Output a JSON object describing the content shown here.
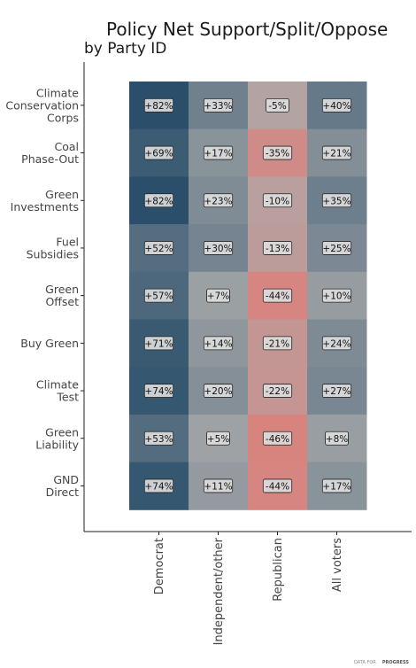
{
  "chart_data": {
    "type": "heatmap",
    "title": "Policy Net Support/Split/Oppose",
    "subtitle": "by Party ID",
    "rows": [
      [
        "Climate",
        "Conservation",
        "Corps"
      ],
      [
        "Coal",
        "Phase-Out"
      ],
      [
        "Green",
        "Investments"
      ],
      [
        "Fuel",
        "Subsidies"
      ],
      [
        "Green",
        "Offset"
      ],
      [
        "Buy Green"
      ],
      [
        "Climate",
        "Test"
      ],
      [
        "Green",
        "Liability"
      ],
      [
        "GND",
        "Direct"
      ]
    ],
    "columns": [
      "Democrat",
      "Independent/other",
      "Republican",
      "All voters"
    ],
    "values": [
      [
        82,
        33,
        -5,
        40
      ],
      [
        69,
        17,
        -35,
        21
      ],
      [
        82,
        23,
        -10,
        35
      ],
      [
        52,
        30,
        -13,
        25
      ],
      [
        57,
        7,
        -44,
        10
      ],
      [
        71,
        14,
        -21,
        24
      ],
      [
        74,
        20,
        -22,
        27
      ],
      [
        53,
        5,
        -46,
        8
      ],
      [
        74,
        11,
        -44,
        17
      ]
    ],
    "labels": [
      [
        "+82%",
        "+33%",
        "-5%",
        "+40%"
      ],
      [
        "+69%",
        "+17%",
        "-35%",
        "+21%"
      ],
      [
        "+82%",
        "+23%",
        "-10%",
        "+35%"
      ],
      [
        "+52%",
        "+30%",
        "-13%",
        "+25%"
      ],
      [
        "+57%",
        "+7%",
        "-44%",
        "+10%"
      ],
      [
        "+71%",
        "+14%",
        "-21%",
        "+24%"
      ],
      [
        "+74%",
        "+20%",
        "-22%",
        "+27%"
      ],
      [
        "+53%",
        "+5%",
        "-46%",
        "+8%"
      ],
      [
        "+74%",
        "+11%",
        "-44%",
        "+17%"
      ]
    ],
    "color_scale": {
      "positive": "#2b4f6b",
      "neutral": "#ababab",
      "negative": "#d7847f"
    },
    "credit": {
      "prefix": "DATA FOR",
      "brand": "PROGRESS"
    }
  }
}
